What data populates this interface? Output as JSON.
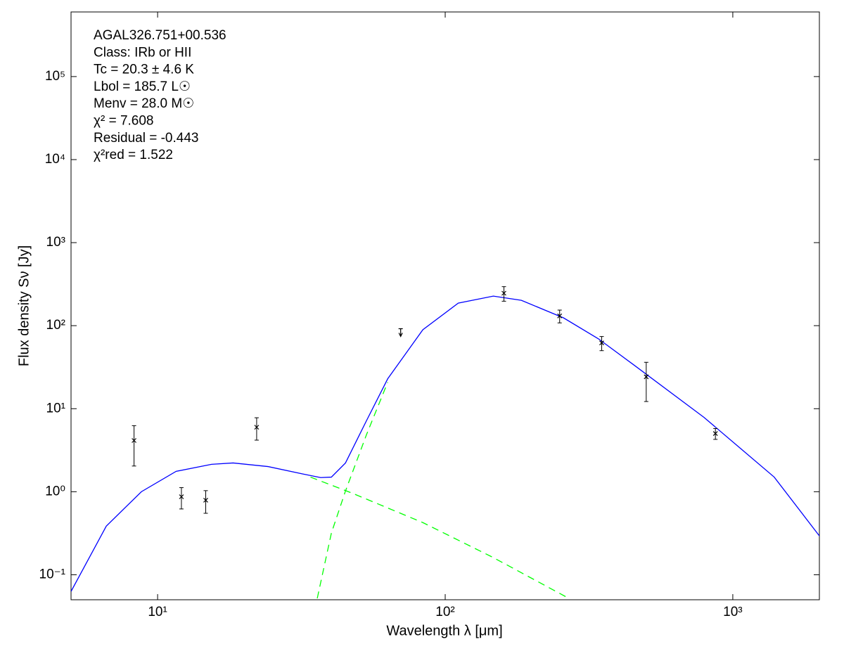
{
  "chart_data": {
    "type": "scatter",
    "xlabel": "Wavelength λ [μm]",
    "ylabel": "Flux density Sν [Jy]",
    "annotations": [
      "AGAL326.751+00.536",
      "Class: IRb or HII",
      "Tc = 20.3 ± 4.6 K",
      "Lbol = 185.7 L☉",
      "Menv = 28.0 M☉",
      "χ² = 7.608",
      "Residual = -0.443",
      "χ²red = 1.522"
    ],
    "xlog": true,
    "ylog": true,
    "xlim": [
      5,
      2000
    ],
    "ylim": [
      0.05,
      600000
    ],
    "xticks": [
      {
        "value": 10,
        "label": "10¹"
      },
      {
        "value": 100,
        "label": "10²"
      },
      {
        "value": 1000,
        "label": "10³"
      }
    ],
    "yticks": [
      {
        "value": 0.1,
        "label": "10⁻¹"
      },
      {
        "value": 1,
        "label": "10⁰"
      },
      {
        "value": 10,
        "label": "10¹"
      },
      {
        "value": 100,
        "label": "10²"
      },
      {
        "value": 1000,
        "label": "10³"
      },
      {
        "value": 10000,
        "label": "10⁴"
      },
      {
        "value": 100000,
        "label": "10⁵"
      }
    ],
    "series": [
      {
        "type": "errorbar",
        "color": "#000000",
        "x": [
          8.28,
          12.1,
          14.7,
          22.1,
          160,
          250,
          350,
          500,
          870
        ],
        "values": [
          4.14,
          0.87,
          0.79,
          5.98,
          246,
          131,
          62,
          24.2,
          5.02
        ],
        "errors": [
          2.1,
          0.25,
          0.24,
          1.8,
          49,
          23,
          12,
          12,
          0.75
        ]
      },
      {
        "type": "upper_limit",
        "color": "#000000",
        "x": [
          70
        ],
        "values": [
          85
        ]
      },
      {
        "type": "line",
        "color": "#0000ff",
        "x": [
          5,
          6.63,
          8.78,
          11.6,
          15.4,
          18.3,
          24.2,
          32.1,
          36.9,
          40.2,
          45.0,
          53.2,
          63.1,
          83.6,
          111,
          147,
          184,
          258,
          341,
          452,
          794,
          1393,
          2009
        ],
        "values": [
          0.063,
          0.385,
          1.0,
          1.76,
          2.14,
          2.22,
          2.01,
          1.63,
          1.48,
          1.5,
          2.22,
          7.13,
          22.9,
          89.3,
          187,
          227,
          202,
          124,
          69.4,
          33.8,
          7.86,
          1.5,
          0.288
        ]
      },
      {
        "type": "line",
        "color": "#00ff00",
        "dashed": true,
        "x": [
          34.0,
          47.5,
          83.6,
          147,
          269
        ],
        "values": [
          1.5,
          0.96,
          0.425,
          0.161,
          0.052
        ]
      },
      {
        "type": "line",
        "color": "#00ff00",
        "dashed": true,
        "x": [
          35.9,
          40.2,
          45.0,
          53.2,
          63.1
        ],
        "values": [
          0.052,
          0.318,
          1.02,
          4.83,
          20.8
        ]
      }
    ]
  }
}
